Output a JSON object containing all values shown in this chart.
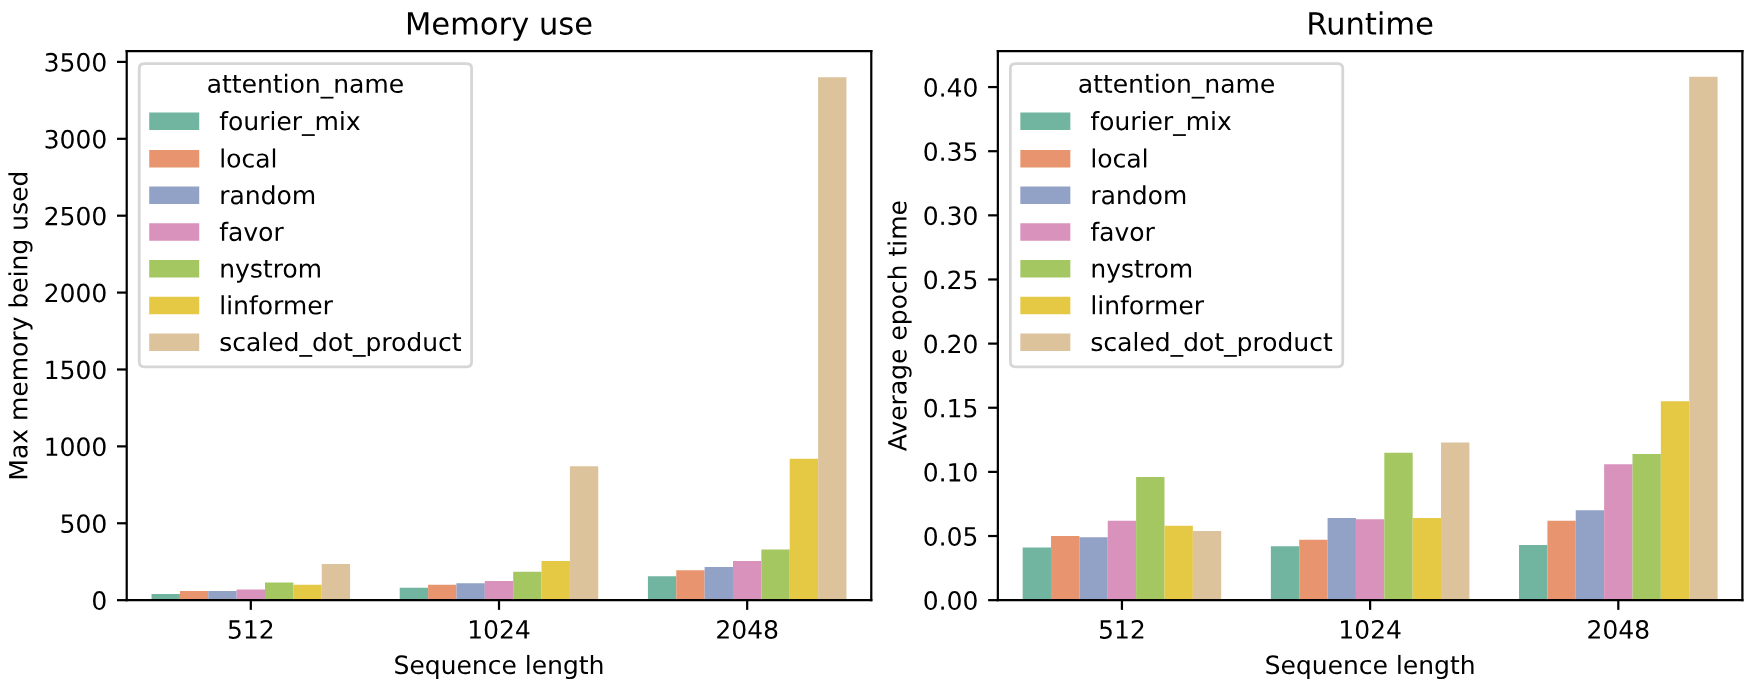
{
  "chart_data": [
    {
      "type": "bar",
      "title": "Memory use",
      "xlabel": "Sequence length",
      "ylabel": "Max memory being used",
      "legend_title": "attention_name",
      "legend": "top left",
      "grid": false,
      "categories": [
        "512",
        "1024",
        "2048"
      ],
      "ylim": [
        0,
        3570
      ],
      "yticks": [
        0,
        500,
        1000,
        1500,
        2000,
        2500,
        3000,
        3500
      ],
      "series": [
        {
          "name": "fourier_mix",
          "color": "#71b4a0",
          "values": [
            40,
            80,
            155
          ]
        },
        {
          "name": "local",
          "color": "#e8956f",
          "values": [
            60,
            100,
            195
          ]
        },
        {
          "name": "random",
          "color": "#92a1c6",
          "values": [
            60,
            110,
            215
          ]
        },
        {
          "name": "favor",
          "color": "#d892bc",
          "values": [
            70,
            125,
            255
          ]
        },
        {
          "name": "nystrom",
          "color": "#a4c762",
          "values": [
            115,
            185,
            330
          ]
        },
        {
          "name": "linformer",
          "color": "#e5c844",
          "values": [
            100,
            255,
            920
          ]
        },
        {
          "name": "scaled_dot_product",
          "color": "#dcc39c",
          "values": [
            235,
            870,
            3400
          ]
        }
      ]
    },
    {
      "type": "bar",
      "title": "Runtime",
      "xlabel": "Sequence length",
      "ylabel": "Average epoch time",
      "legend_title": "attention_name",
      "legend": "top left",
      "grid": false,
      "categories": [
        "512",
        "1024",
        "2048"
      ],
      "ylim": [
        0,
        0.428
      ],
      "yticks": [
        {
          "value": 0,
          "label": "0.00"
        },
        {
          "value": 0.05,
          "label": "0.05"
        },
        {
          "value": 0.1,
          "label": "0.10"
        },
        {
          "value": 0.15,
          "label": "0.15"
        },
        {
          "value": 0.2,
          "label": "0.20"
        },
        {
          "value": 0.25,
          "label": "0.25"
        },
        {
          "value": 0.3,
          "label": "0.30"
        },
        {
          "value": 0.35,
          "label": "0.35"
        },
        {
          "value": 0.4,
          "label": "0.40"
        }
      ],
      "series": [
        {
          "name": "fourier_mix",
          "color": "#71b4a0",
          "values": [
            0.041,
            0.042,
            0.043
          ]
        },
        {
          "name": "local",
          "color": "#e8956f",
          "values": [
            0.05,
            0.047,
            0.062
          ]
        },
        {
          "name": "random",
          "color": "#92a1c6",
          "values": [
            0.049,
            0.064,
            0.07
          ]
        },
        {
          "name": "favor",
          "color": "#d892bc",
          "values": [
            0.062,
            0.063,
            0.106
          ]
        },
        {
          "name": "nystrom",
          "color": "#a4c762",
          "values": [
            0.096,
            0.115,
            0.114
          ]
        },
        {
          "name": "linformer",
          "color": "#e5c844",
          "values": [
            0.058,
            0.064,
            0.155
          ]
        },
        {
          "name": "scaled_dot_product",
          "color": "#dcc39c",
          "values": [
            0.054,
            0.123,
            0.408
          ]
        }
      ]
    }
  ]
}
